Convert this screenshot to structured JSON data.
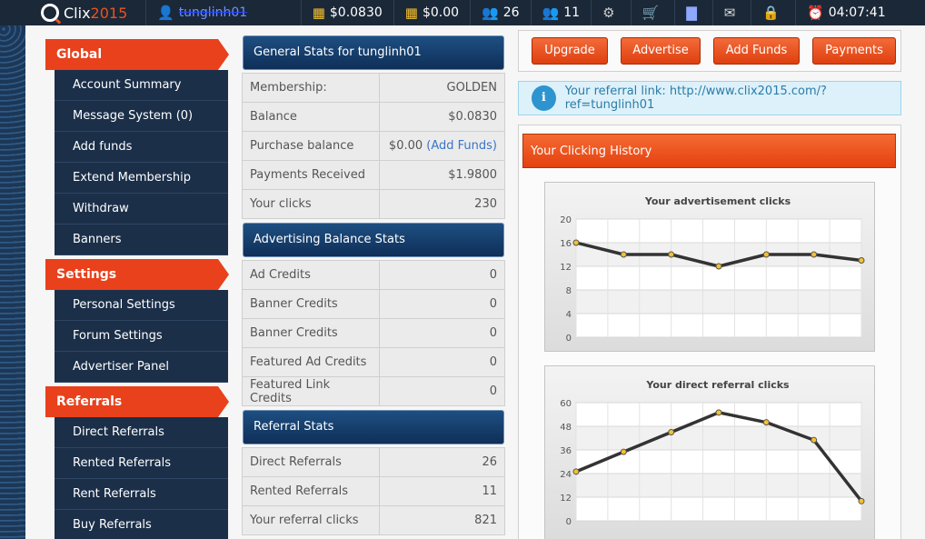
{
  "topbar": {
    "brand_a": "Clix",
    "brand_b": "2015",
    "username": "tunglinh01",
    "balance": "$0.0830",
    "purchase_balance": "$0.00",
    "direct_count": "26",
    "rented_count": "11",
    "clock": "04:07:41"
  },
  "sidebar": {
    "global": {
      "title": "Global",
      "items": [
        "Account Summary",
        "Message System (0)",
        "Add funds",
        "Extend Membership",
        "Withdraw",
        "Banners"
      ]
    },
    "settings": {
      "title": "Settings",
      "items": [
        "Personal Settings",
        "Forum Settings",
        "Advertiser Panel"
      ]
    },
    "referrals": {
      "title": "Referrals",
      "items": [
        "Direct Referrals",
        "Rented Referrals",
        "Rent Referrals",
        "Buy Referrals"
      ]
    }
  },
  "general": {
    "title": "General Stats for tunglinh01",
    "rows": [
      {
        "label": "Membership:",
        "value": "GOLDEN"
      },
      {
        "label": "Balance",
        "value": "$0.0830"
      },
      {
        "label": "Purchase balance",
        "value": "$0.00",
        "link": "(Add Funds)"
      },
      {
        "label": "Payments Received",
        "value": "$1.9800"
      },
      {
        "label": "Your clicks",
        "value": "230"
      }
    ]
  },
  "advertising": {
    "title": "Advertising Balance Stats",
    "rows": [
      {
        "label": "Ad Credits",
        "value": "0"
      },
      {
        "label": "Banner Credits",
        "value": "0"
      },
      {
        "label": "Banner Credits",
        "value": "0"
      },
      {
        "label": "Featured Ad Credits",
        "value": "0"
      },
      {
        "label": "Featured Link Credits",
        "value": "0"
      }
    ]
  },
  "referral_stats": {
    "title": "Referral Stats",
    "rows": [
      {
        "label": "Direct Referrals",
        "value": "26"
      },
      {
        "label": "Rented Referrals",
        "value": "11"
      },
      {
        "label": "Your referral clicks",
        "value": "821"
      }
    ]
  },
  "buttons": [
    "Upgrade",
    "Advertise",
    "Add Funds",
    "Payments"
  ],
  "referral_link": "Your referral link: http://www.clix2015.com/?ref=tunglinh01",
  "history_title": "Your Clicking History",
  "colors": {
    "accent": "#e8411c",
    "sidebar": "#1b2f49",
    "navy": "#1b2838"
  },
  "chart_data": [
    {
      "type": "line",
      "title": "Your advertisement clicks",
      "y_ticks": [
        0,
        4,
        8,
        12,
        16,
        20
      ],
      "ylim": [
        0,
        20
      ],
      "values": [
        16,
        14,
        14,
        12,
        14,
        14,
        13
      ]
    },
    {
      "type": "line",
      "title": "Your direct referral clicks",
      "y_ticks": [
        0,
        12,
        24,
        36,
        48,
        60
      ],
      "ylim": [
        0,
        60
      ],
      "values": [
        25,
        35,
        45,
        55,
        50,
        41,
        10
      ]
    }
  ]
}
